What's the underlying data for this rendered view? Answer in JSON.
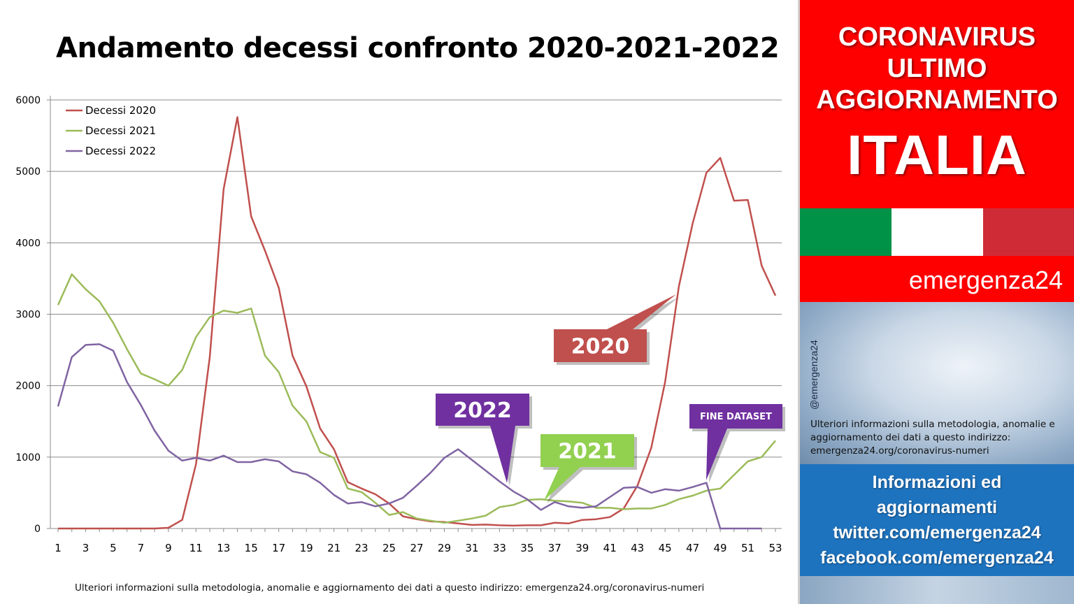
{
  "title": "Andamento decessi confronto 2020-2021-2022",
  "footnote": "Ulteriori informazioni sulla metodologia, anomalie e aggiornamento dei dati a questo indirizzo: emergenza24.org/coronavirus-numeri",
  "sidebar": {
    "header_lines": [
      "CORONAVIRUS",
      "ULTIMO",
      "AGGIORNAMENTO",
      "ITALIA"
    ],
    "flag_colors": [
      "#009246",
      "#ffffff",
      "#ce2b37"
    ],
    "brand": "emergenza24",
    "handle": "@emergenza24",
    "note": "Ulteriori informazioni sulla metodologia, anomalie e aggiornamento dei dati a questo indirizzo: emergenza24.org/coronavirus-numeri",
    "info_lines": [
      "Informazioni ed",
      "aggiornamenti",
      "twitter.com/emergenza24",
      "facebook.com/emergenza24"
    ],
    "colors": {
      "red": "#ff0000",
      "blue": "#1e73be"
    }
  },
  "chart_data": {
    "type": "line",
    "title": "Andamento decessi confronto 2020-2021-2022",
    "xlabel": "",
    "ylabel": "",
    "ylim": [
      0,
      6000
    ],
    "yticks": [
      0,
      1000,
      2000,
      3000,
      4000,
      5000,
      6000
    ],
    "xlim": [
      1,
      53
    ],
    "xticks": [
      1,
      3,
      5,
      7,
      9,
      11,
      13,
      15,
      17,
      19,
      21,
      23,
      25,
      27,
      29,
      31,
      33,
      35,
      37,
      39,
      41,
      43,
      45,
      47,
      49,
      51,
      53
    ],
    "grid": true,
    "legend_position": "top-left",
    "series": [
      {
        "name": "Decessi 2020",
        "color": "#c0504d",
        "x": [
          1,
          2,
          3,
          4,
          5,
          6,
          7,
          8,
          9,
          10,
          11,
          12,
          13,
          14,
          15,
          16,
          17,
          18,
          19,
          20,
          21,
          22,
          23,
          24,
          25,
          26,
          27,
          28,
          29,
          30,
          31,
          32,
          33,
          34,
          35,
          36,
          37,
          38,
          39,
          40,
          41,
          42,
          43,
          44,
          45,
          46,
          47,
          48,
          49,
          50,
          51,
          52,
          53
        ],
        "values": [
          0,
          0,
          0,
          0,
          0,
          0,
          0,
          0,
          10,
          120,
          900,
          2400,
          4750,
          5760,
          4370,
          3890,
          3370,
          2420,
          1990,
          1400,
          1110,
          650,
          560,
          480,
          350,
          170,
          130,
          100,
          90,
          70,
          50,
          55,
          45,
          40,
          45,
          45,
          80,
          70,
          120,
          130,
          160,
          280,
          600,
          1130,
          2050,
          3390,
          4270,
          4980,
          5190,
          4590,
          4600,
          3680,
          3260
        ]
      },
      {
        "name": "Decessi 2021",
        "color": "#9bbb59",
        "x": [
          1,
          2,
          3,
          4,
          5,
          6,
          7,
          8,
          9,
          10,
          11,
          12,
          13,
          14,
          15,
          16,
          17,
          18,
          19,
          20,
          21,
          22,
          23,
          24,
          25,
          26,
          27,
          28,
          29,
          30,
          31,
          32,
          33,
          34,
          35,
          36,
          37,
          38,
          39,
          40,
          41,
          42,
          43,
          44,
          45,
          46,
          47,
          48,
          49,
          50,
          51,
          52,
          53
        ],
        "values": [
          3130,
          3560,
          3350,
          3180,
          2880,
          2510,
          2170,
          2090,
          2000,
          2220,
          2680,
          2960,
          3050,
          3020,
          3080,
          2420,
          2190,
          1720,
          1500,
          1070,
          990,
          560,
          510,
          360,
          190,
          230,
          140,
          110,
          80,
          110,
          140,
          180,
          300,
          330,
          400,
          410,
          390,
          380,
          360,
          290,
          290,
          270,
          280,
          280,
          330,
          410,
          460,
          530,
          560,
          750,
          940,
          1000,
          1230
        ]
      },
      {
        "name": "Decessi 2022",
        "color": "#8064a2",
        "x": [
          1,
          2,
          3,
          4,
          5,
          6,
          7,
          8,
          9,
          10,
          11,
          12,
          13,
          14,
          15,
          16,
          17,
          18,
          19,
          20,
          21,
          22,
          23,
          24,
          25,
          26,
          27,
          28,
          29,
          30,
          31,
          32,
          33,
          34,
          35,
          36,
          37,
          38,
          39,
          40,
          41,
          42,
          43,
          44,
          45,
          46,
          47,
          48,
          49,
          50,
          51,
          52
        ],
        "values": [
          1710,
          2400,
          2570,
          2580,
          2490,
          2050,
          1730,
          1370,
          1090,
          950,
          990,
          950,
          1020,
          930,
          930,
          970,
          940,
          800,
          760,
          640,
          470,
          350,
          370,
          310,
          350,
          430,
          600,
          780,
          990,
          1110,
          960,
          810,
          660,
          520,
          410,
          260,
          370,
          310,
          290,
          310,
          440,
          570,
          580,
          500,
          550,
          530,
          580,
          640,
          0,
          0,
          0,
          0
        ]
      }
    ],
    "callouts": [
      {
        "text": "2020",
        "color": "#c0504d"
      },
      {
        "text": "2022",
        "color": "#7030a0"
      },
      {
        "text": "2021",
        "color": "#92d050"
      },
      {
        "text": "FINE DATASET",
        "color": "#7030a0"
      }
    ]
  }
}
